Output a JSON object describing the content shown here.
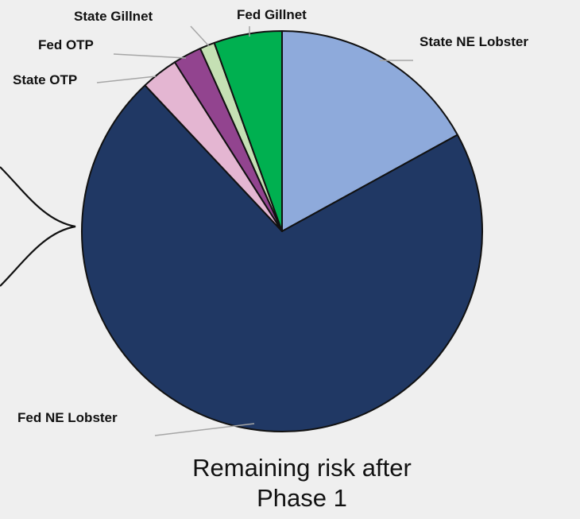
{
  "chart_data": {
    "type": "pie",
    "slices": [
      {
        "label": "State NE Lobster",
        "value": 17.0,
        "color": "#8eaadb"
      },
      {
        "label": "Fed NE Lobster",
        "value": 71.0,
        "color": "#203864"
      },
      {
        "label": "State OTP",
        "value": 3.0,
        "color": "#e4b6d2"
      },
      {
        "label": "Fed OTP",
        "value": 2.3,
        "color": "#92448f"
      },
      {
        "label": "State Gillnet",
        "value": 1.2,
        "color": "#c5e0b4"
      },
      {
        "label": "Fed Gillnet",
        "value": 5.5,
        "color": "#00b050"
      }
    ],
    "caption_lines": [
      "Remaining risk after",
      "Phase 1"
    ]
  }
}
